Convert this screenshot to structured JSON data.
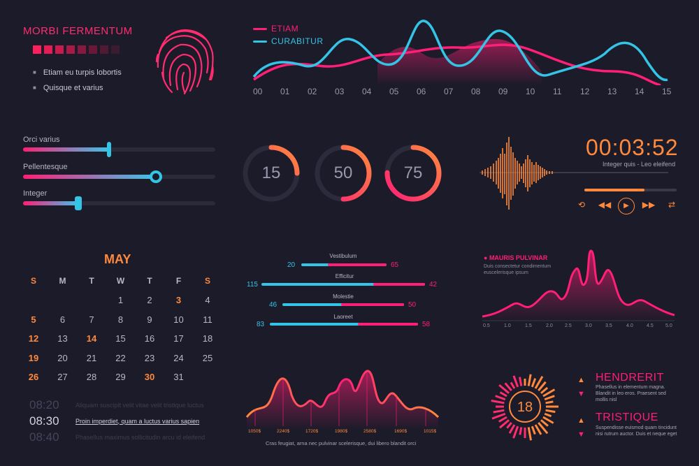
{
  "header": {
    "title": "MORBI FERMENTUM",
    "items": [
      "Etiam eu turpis lobortis",
      "Quisque et varius"
    ]
  },
  "wave_chart": {
    "legend": [
      "ETIAM",
      "CURABITUR"
    ],
    "ticks": [
      "00",
      "01",
      "02",
      "03",
      "04",
      "05",
      "06",
      "07",
      "08",
      "09",
      "10",
      "11",
      "12",
      "13",
      "14",
      "15"
    ]
  },
  "sliders": [
    {
      "label": "Orci varius",
      "value": 0.4
    },
    {
      "label": "Pellentesque",
      "value": 0.71
    },
    {
      "label": "Integer",
      "value": 0.29
    }
  ],
  "rings": [
    {
      "label": "15",
      "value": 15
    },
    {
      "label": "50",
      "value": 50
    },
    {
      "label": "75",
      "value": 75
    }
  ],
  "player": {
    "time": "00:03:52",
    "subtitle": "Integer quis -  Leo eleifend",
    "progress": 0.7,
    "controls": [
      "repeat-icon",
      "rewind-icon",
      "play-icon",
      "fast-forward-icon",
      "shuffle-icon"
    ]
  },
  "calendar": {
    "month": "MAY",
    "weekdays": [
      "S",
      "M",
      "T",
      "W",
      "T",
      "F",
      "S"
    ],
    "rows": [
      [
        "",
        "",
        "",
        "1",
        "2",
        "3",
        "4"
      ],
      [
        "5",
        "6",
        "7",
        "8",
        "9",
        "10",
        "11"
      ],
      [
        "12",
        "13",
        "14",
        "15",
        "16",
        "17",
        "18"
      ],
      [
        "19",
        "20",
        "21",
        "22",
        "23",
        "24",
        "25"
      ],
      [
        "26",
        "27",
        "28",
        "29",
        "30",
        "31",
        ""
      ]
    ],
    "highlighted": [
      "3",
      "5",
      "12",
      "14",
      "19",
      "26",
      "30"
    ]
  },
  "schedule": [
    {
      "time": "08:20",
      "text": "Aliquam suscipit velit vitae velit tristique luctus"
    },
    {
      "time": "08:30",
      "text": "Proin imperdiet, quam a luctus varius sapien"
    },
    {
      "time": "08:40",
      "text": "Phasellus maximus sollicitudin arcu id eleifend"
    }
  ],
  "comparison": [
    {
      "label": "Vestibulum",
      "left": "20",
      "right": "65"
    },
    {
      "label": "Efficitur",
      "left": "115",
      "right": "42"
    },
    {
      "label": "Molestie",
      "left": "46",
      "right": "50"
    },
    {
      "label": "Laoreet",
      "left": "83",
      "right": "58"
    }
  ],
  "bottom_chart": {
    "labels": [
      "1050$",
      "2240$",
      "1720$",
      "1980$",
      "2580$",
      "1690$",
      "1015$"
    ],
    "caption": "Cras feugiat, arna nec pulvinar scelerisque, dui libero blandit orci"
  },
  "pulvinar": {
    "title": "MAURIS PULVINAR",
    "subtitle": "Duis consectetur condimentum euscelerisque ipsum",
    "x_ticks": [
      "0.5",
      "1.0",
      "1.5",
      "2.0",
      "2.5",
      "3.0",
      "3.5",
      "4.0",
      "4.5",
      "5.0"
    ]
  },
  "gauge": {
    "value": "18"
  },
  "stats": [
    {
      "title": "HENDRERIT",
      "text": "Phasellus in elementum magna. Blandit in leo eros. Praesent sed mollis nisl"
    },
    {
      "title": "TRISTIQUE",
      "text": "Suspendisse euismod quam tincidunt nisi rutrum auctor. Duis et neque eget"
    }
  ],
  "colors": {
    "pink": "#ff1f76",
    "orange": "#ff8a3d",
    "cyan": "#34c4e6",
    "bg": "#1c1b29"
  }
}
